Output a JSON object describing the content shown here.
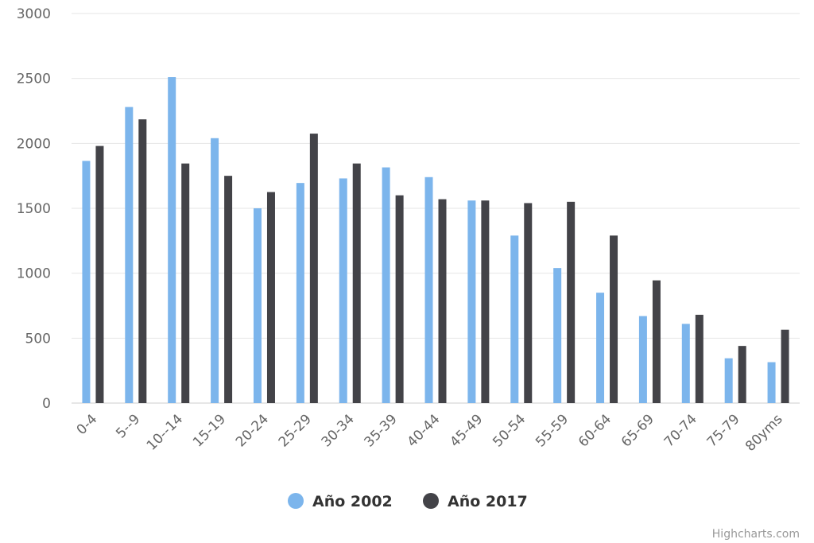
{
  "chart_data": {
    "type": "bar",
    "categories": [
      "0-4",
      "5--9",
      "10--14",
      "15-19",
      "20-24",
      "25-29",
      "30-34",
      "35-39",
      "40-44",
      "45-49",
      "50-54",
      "55-59",
      "60-64",
      "65-69",
      "70-74",
      "75-79",
      "80yms"
    ],
    "series": [
      {
        "name": "Año 2002",
        "color": "#7cb5ec",
        "values": [
          1865,
          2280,
          2510,
          2040,
          1500,
          1695,
          1730,
          1815,
          1740,
          1560,
          1290,
          1040,
          850,
          670,
          610,
          345,
          315
        ]
      },
      {
        "name": "Año 2017",
        "color": "#434348",
        "values": [
          1980,
          2185,
          1845,
          1750,
          1625,
          2075,
          1845,
          1600,
          1570,
          1560,
          1540,
          1550,
          1290,
          945,
          680,
          440,
          565
        ]
      }
    ],
    "ylim": [
      0,
      3000
    ],
    "yticks": [
      0,
      500,
      1000,
      1500,
      2000,
      2500,
      3000
    ],
    "grid": true,
    "legend": "bottom-center",
    "credits": "Highcharts.com"
  }
}
